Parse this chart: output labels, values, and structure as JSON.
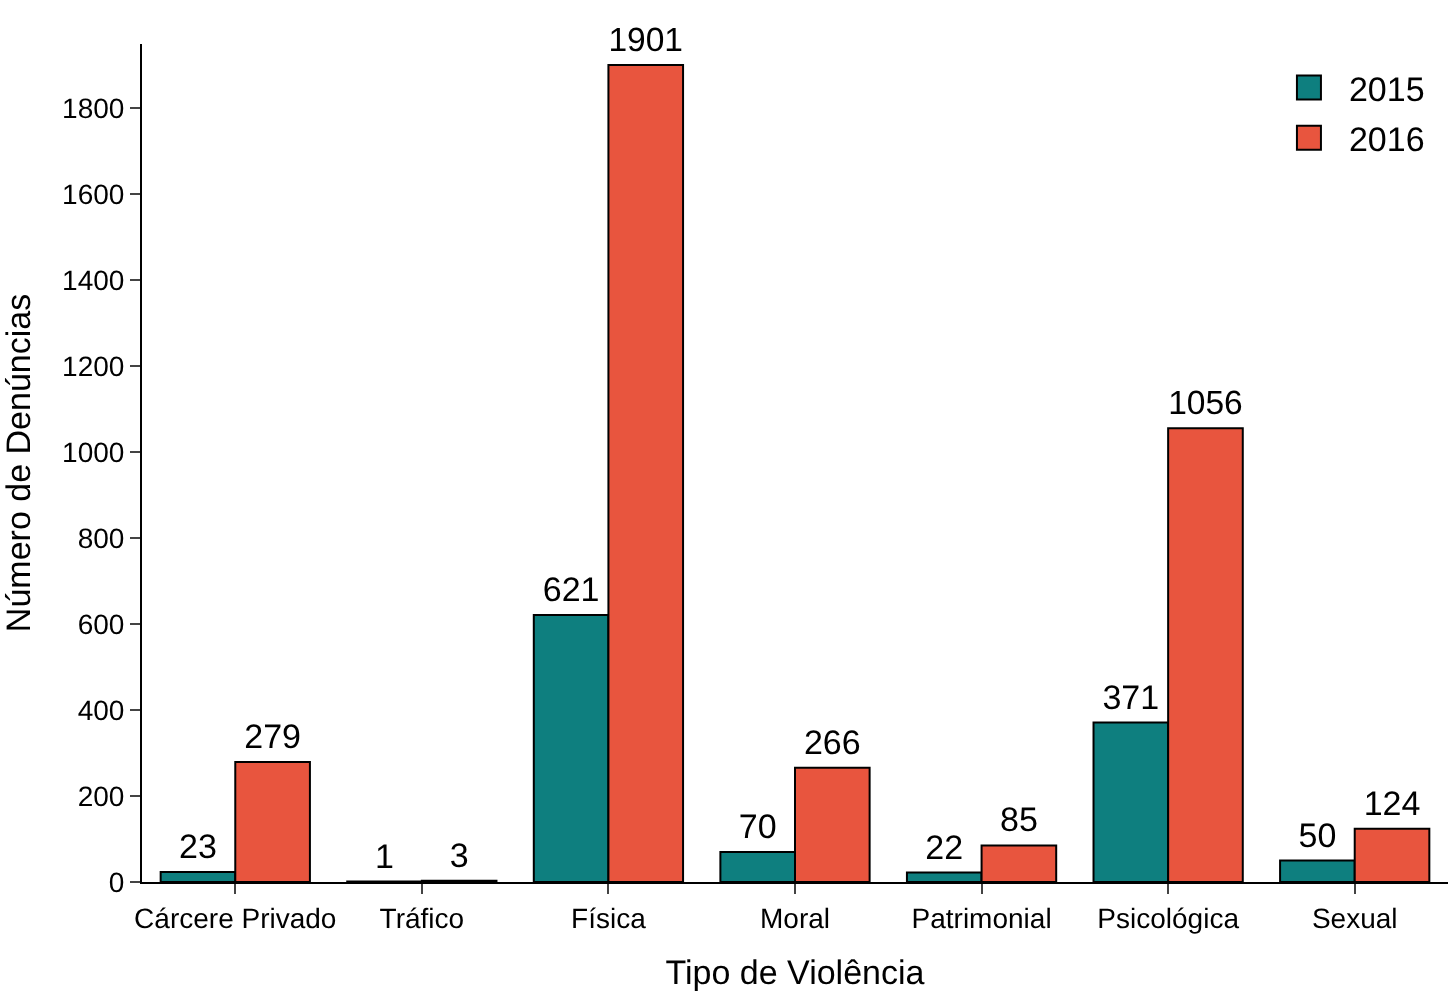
{
  "chart_data": {
    "type": "bar",
    "xlabel": "Tipo de Violência",
    "ylabel": "Número de Denúncias",
    "categories": [
      "Cárcere Privado",
      "Tráfico",
      "Física",
      "Moral",
      "Patrimonial",
      "Psicológica",
      "Sexual"
    ],
    "series": [
      {
        "name": "2015",
        "color": "#0e7f7f",
        "values": [
          23,
          1,
          621,
          70,
          22,
          371,
          50
        ]
      },
      {
        "name": "2016",
        "color": "#e8553e",
        "values": [
          279,
          3,
          1901,
          266,
          85,
          1056,
          124
        ]
      }
    ],
    "ylim": [
      0,
      1950
    ],
    "yticks": [
      0,
      200,
      400,
      600,
      800,
      1000,
      1200,
      1400,
      1600,
      1800
    ],
    "data_labels": true,
    "legend": "top right"
  }
}
